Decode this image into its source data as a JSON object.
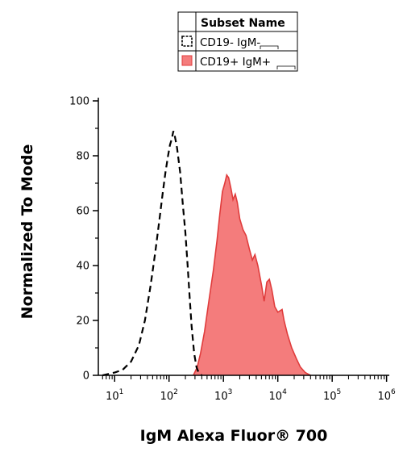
{
  "chart_data": {
    "type": "histogram",
    "xlabel": "IgM Alexa Fluor® 700",
    "ylabel": "Normalized To Mode",
    "x_scale": "log",
    "xlim_exp": [
      0.7,
      6.05
    ],
    "ylim": [
      0,
      100
    ],
    "x_ticks": [
      {
        "base": "10",
        "exp": "1",
        "value": 10
      },
      {
        "base": "10",
        "exp": "2",
        "value": 100
      },
      {
        "base": "10",
        "exp": "3",
        "value": 1000
      },
      {
        "base": "10",
        "exp": "4",
        "value": 10000
      },
      {
        "base": "10",
        "exp": "5",
        "value": 100000
      },
      {
        "base": "10",
        "exp": "6",
        "value": 1000000
      }
    ],
    "y_ticks": [
      "0",
      "20",
      "40",
      "60",
      "80",
      "100"
    ],
    "legend": {
      "header": "Subset Name",
      "placement": "top-center",
      "entries": [
        {
          "label": "CD19- IgM-",
          "style": "dashed-outline",
          "fill": "none",
          "stroke": "#000000"
        },
        {
          "label": "CD19+ IgM+",
          "style": "filled",
          "fill": "#f47c7c",
          "stroke": "#e03c3c"
        }
      ]
    },
    "series": [
      {
        "name": "CD19- IgM-",
        "style": "dashed",
        "stroke": "#000000",
        "fill": "none",
        "points": [
          [
            6,
            0
          ],
          [
            10,
            1
          ],
          [
            14,
            2
          ],
          [
            20,
            5
          ],
          [
            28,
            11
          ],
          [
            36,
            20
          ],
          [
            46,
            33
          ],
          [
            56,
            45
          ],
          [
            66,
            56
          ],
          [
            76,
            66
          ],
          [
            86,
            74
          ],
          [
            96,
            80
          ],
          [
            104,
            84
          ],
          [
            112,
            86
          ],
          [
            120,
            89
          ],
          [
            128,
            87
          ],
          [
            140,
            83
          ],
          [
            160,
            74
          ],
          [
            180,
            62
          ],
          [
            200,
            52
          ],
          [
            220,
            40
          ],
          [
            240,
            28
          ],
          [
            260,
            18
          ],
          [
            290,
            8
          ],
          [
            320,
            3
          ],
          [
            350,
            1
          ],
          [
            400,
            0
          ]
        ]
      },
      {
        "name": "CD19+ IgM+",
        "style": "filled",
        "stroke": "#e03c3c",
        "fill": "#f47c7c",
        "points": [
          [
            280,
            0
          ],
          [
            330,
            3
          ],
          [
            380,
            8
          ],
          [
            450,
            16
          ],
          [
            540,
            27
          ],
          [
            650,
            38
          ],
          [
            760,
            49
          ],
          [
            860,
            59
          ],
          [
            960,
            67
          ],
          [
            1060,
            70
          ],
          [
            1150,
            73
          ],
          [
            1250,
            72
          ],
          [
            1380,
            68
          ],
          [
            1500,
            64
          ],
          [
            1650,
            66
          ],
          [
            1800,
            63
          ],
          [
            2000,
            57
          ],
          [
            2300,
            53
          ],
          [
            2600,
            51
          ],
          [
            3000,
            46
          ],
          [
            3400,
            42
          ],
          [
            3800,
            44
          ],
          [
            4300,
            40
          ],
          [
            5000,
            33
          ],
          [
            5600,
            27
          ],
          [
            6300,
            34
          ],
          [
            7000,
            35
          ],
          [
            7800,
            31
          ],
          [
            8800,
            25
          ],
          [
            10000,
            23
          ],
          [
            12000,
            24
          ],
          [
            13000,
            20
          ],
          [
            15000,
            15
          ],
          [
            18000,
            10
          ],
          [
            22000,
            6
          ],
          [
            26000,
            3
          ],
          [
            32000,
            1
          ],
          [
            40000,
            0
          ]
        ]
      }
    ]
  }
}
